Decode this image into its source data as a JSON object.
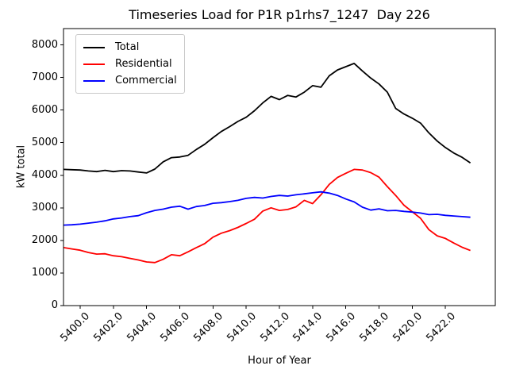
{
  "chart_data": {
    "type": "line",
    "title": "Timeseries Load for P1R p1rhs7_1247  Day 226",
    "xlabel": "Hour of Year",
    "ylabel": "kW total",
    "xlim": [
      5399,
      5425
    ],
    "ylim": [
      0,
      8500
    ],
    "grid": false,
    "legend_position": "upper left",
    "xticks": {
      "values": [
        5400,
        5402,
        5404,
        5406,
        5408,
        5410,
        5412,
        5414,
        5416,
        5418,
        5420,
        5422
      ],
      "labels": [
        "5400.0",
        "5402.0",
        "5404.0",
        "5406.0",
        "5408.0",
        "5410.0",
        "5412.0",
        "5414.0",
        "5416.0",
        "5418.0",
        "5420.0",
        "5422.0"
      ]
    },
    "yticks": {
      "values": [
        0,
        1000,
        2000,
        3000,
        4000,
        5000,
        6000,
        7000,
        8000
      ],
      "labels": [
        "0",
        "1000",
        "2000",
        "3000",
        "4000",
        "5000",
        "6000",
        "7000",
        "8000"
      ]
    },
    "x": [
      5399.0,
      5399.5,
      5400.0,
      5400.5,
      5401.0,
      5401.5,
      5402.0,
      5402.5,
      5403.0,
      5403.5,
      5404.0,
      5404.5,
      5405.0,
      5405.5,
      5406.0,
      5406.5,
      5407.0,
      5407.5,
      5408.0,
      5408.5,
      5409.0,
      5409.5,
      5410.0,
      5410.5,
      5411.0,
      5411.5,
      5412.0,
      5412.5,
      5413.0,
      5413.5,
      5414.0,
      5414.5,
      5415.0,
      5415.5,
      5416.0,
      5416.5,
      5417.0,
      5417.5,
      5418.0,
      5418.5,
      5419.0,
      5419.5,
      5420.0,
      5420.5,
      5421.0,
      5421.5,
      5422.0,
      5422.5,
      5423.0,
      5423.5
    ],
    "series": [
      {
        "name": "Total",
        "color": "#000000",
        "values": [
          4180,
          4170,
          4160,
          4130,
          4110,
          4150,
          4110,
          4140,
          4130,
          4100,
          4070,
          4190,
          4410,
          4540,
          4560,
          4610,
          4790,
          4950,
          5150,
          5340,
          5490,
          5650,
          5780,
          5980,
          6220,
          6420,
          6320,
          6450,
          6400,
          6550,
          6750,
          6700,
          7050,
          7230,
          7330,
          7430,
          7200,
          6980,
          6800,
          6550,
          6050,
          5880,
          5750,
          5600,
          5300,
          5050,
          4850,
          4680,
          4550,
          4380
        ]
      },
      {
        "name": "Residential",
        "color": "#ff0000",
        "values": [
          1780,
          1740,
          1700,
          1630,
          1580,
          1590,
          1530,
          1500,
          1450,
          1400,
          1340,
          1320,
          1420,
          1560,
          1530,
          1650,
          1780,
          1900,
          2100,
          2220,
          2300,
          2400,
          2520,
          2650,
          2900,
          3000,
          2920,
          2950,
          3030,
          3230,
          3130,
          3400,
          3720,
          3930,
          4060,
          4180,
          4160,
          4080,
          3940,
          3650,
          3380,
          3080,
          2880,
          2680,
          2330,
          2140,
          2060,
          1920,
          1790,
          1690
        ]
      },
      {
        "name": "Commercial",
        "color": "#0000ff",
        "values": [
          2470,
          2480,
          2500,
          2530,
          2560,
          2600,
          2660,
          2690,
          2730,
          2760,
          2850,
          2920,
          2960,
          3020,
          3050,
          2960,
          3040,
          3070,
          3140,
          3160,
          3190,
          3230,
          3290,
          3320,
          3300,
          3350,
          3380,
          3360,
          3400,
          3430,
          3460,
          3490,
          3450,
          3380,
          3270,
          3180,
          3020,
          2930,
          2970,
          2910,
          2920,
          2890,
          2870,
          2840,
          2790,
          2800,
          2770,
          2750,
          2730,
          2710
        ]
      }
    ]
  }
}
